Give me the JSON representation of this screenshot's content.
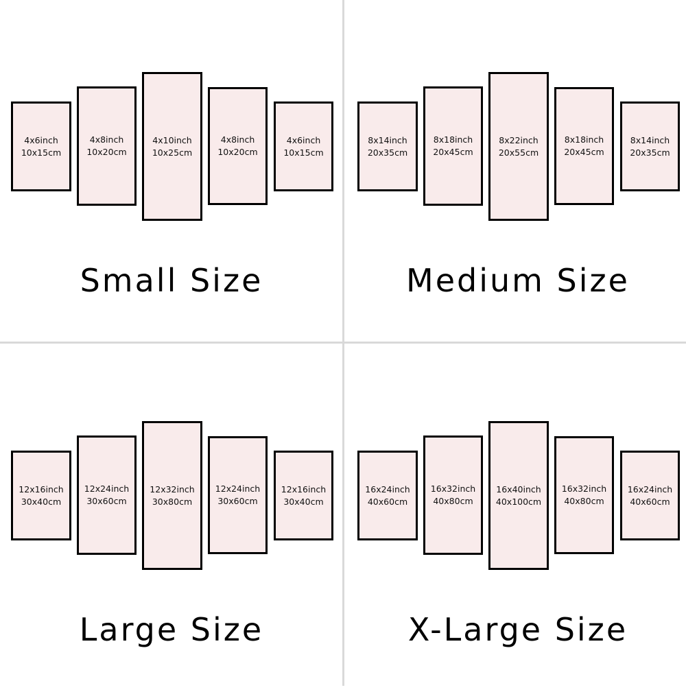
{
  "colors": {
    "panel_fill": "#f9ebeb",
    "panel_border": "#000000",
    "divider": "#d9d9d9"
  },
  "quadrants": [
    {
      "title": "Small Size",
      "panels": [
        {
          "inch": "4x6inch",
          "cm": "10x15cm"
        },
        {
          "inch": "4x8inch",
          "cm": "10x20cm"
        },
        {
          "inch": "4x10inch",
          "cm": "10x25cm"
        },
        {
          "inch": "4x8inch",
          "cm": "10x20cm"
        },
        {
          "inch": "4x6inch",
          "cm": "10x15cm"
        }
      ]
    },
    {
      "title": "Medium Size",
      "panels": [
        {
          "inch": "8x14inch",
          "cm": "20x35cm"
        },
        {
          "inch": "8x18inch",
          "cm": "20x45cm"
        },
        {
          "inch": "8x22inch",
          "cm": "20x55cm"
        },
        {
          "inch": "8x18inch",
          "cm": "20x45cm"
        },
        {
          "inch": "8x14inch",
          "cm": "20x35cm"
        }
      ]
    },
    {
      "title": "Large Size",
      "panels": [
        {
          "inch": "12x16inch",
          "cm": "30x40cm"
        },
        {
          "inch": "12x24inch",
          "cm": "30x60cm"
        },
        {
          "inch": "12x32inch",
          "cm": "30x80cm"
        },
        {
          "inch": "12x24inch",
          "cm": "30x60cm"
        },
        {
          "inch": "12x16inch",
          "cm": "30x40cm"
        }
      ]
    },
    {
      "title": "X-Large Size",
      "panels": [
        {
          "inch": "16x24inch",
          "cm": "40x60cm"
        },
        {
          "inch": "16x32inch",
          "cm": "40x80cm"
        },
        {
          "inch": "16x40inch",
          "cm": "40x100cm"
        },
        {
          "inch": "16x32inch",
          "cm": "40x80cm"
        },
        {
          "inch": "16x24inch",
          "cm": "40x60cm"
        }
      ]
    }
  ]
}
